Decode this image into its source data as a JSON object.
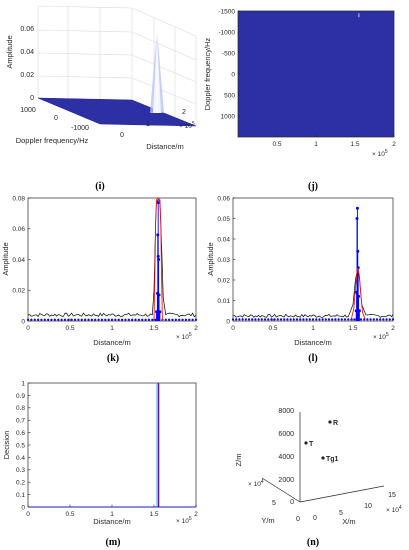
{
  "colors": {
    "navy": "#2d2fa5",
    "peak_white": "#f4f6ff",
    "blue": "#0000ff",
    "red": "#e31a1c",
    "black": "#000000",
    "cyan": "#00c8ff",
    "axis": "#262626"
  },
  "chart_data": [
    {
      "id": "i",
      "panel_label": "(i)",
      "type": "surface3d",
      "title": "",
      "xlabel": "Distance/m",
      "ylabel": "Doppler frequency/Hz",
      "zlabel": "Amplitude",
      "x_exponent": "× 10",
      "x_exponent_power": "5",
      "xlim": [
        0,
        2
      ],
      "ylim": [
        -2000,
        2000
      ],
      "zlim": [
        0,
        0.06
      ],
      "x_ticks": [
        "0",
        "1",
        "2"
      ],
      "y_ticks": [
        "1000",
        "0",
        "-1000"
      ],
      "z_ticks": [
        "0",
        "0.02",
        "0.04",
        "0.06"
      ],
      "peak": {
        "distance": 1.55,
        "doppler": 0,
        "amplitude": 0.055
      },
      "grid": true
    },
    {
      "id": "j",
      "panel_label": "(j)",
      "type": "heatmap",
      "title": "",
      "xlabel": "",
      "ylabel": "Doppler frequency/Hz",
      "x_exponent": "× 10",
      "x_exponent_power": "5",
      "xlim": [
        0,
        2
      ],
      "ylim": [
        -1500,
        1500
      ],
      "x_ticks": [
        0.5,
        1,
        1.5,
        2
      ],
      "x_tick_labels": [
        "0.5",
        "1",
        "1.5",
        "2"
      ],
      "y_ticks": [
        -1500,
        -1000,
        -500,
        0,
        500,
        1000
      ],
      "y_tick_labels": [
        "-1500",
        "-1000",
        "-500",
        "0",
        "500",
        "1000"
      ],
      "hotspot": {
        "distance": 1.55,
        "doppler": -1400
      }
    },
    {
      "id": "k",
      "panel_label": "(k)",
      "type": "line",
      "title": "",
      "xlabel": "Distance/m",
      "ylabel": "Amplitude",
      "x_exponent": "× 10",
      "x_exponent_power": "5",
      "xlim": [
        0,
        2
      ],
      "ylim": [
        0,
        0.08
      ],
      "x_ticks": [
        0,
        0.5,
        1,
        1.5,
        2
      ],
      "x_tick_labels": [
        "0",
        "0.5",
        "1",
        "1.5",
        "2"
      ],
      "y_ticks": [
        0,
        0.02,
        0.04,
        0.06,
        0.08
      ],
      "y_tick_labels": [
        "0",
        "0.02",
        "0.04",
        "0.06",
        "0.08"
      ],
      "series": [
        {
          "color": "black",
          "noise_level": 0.004,
          "noise_amp": 0.0012,
          "points": [
            [
              1.48,
              0.004
            ],
            [
              1.5,
              0.02
            ],
            [
              1.52,
              0.065
            ],
            [
              1.53,
              0.077
            ],
            [
              1.55,
              0.079
            ],
            [
              1.57,
              0.078
            ],
            [
              1.59,
              0.05
            ],
            [
              1.61,
              0.015
            ],
            [
              1.64,
              0.004
            ]
          ]
        },
        {
          "color": "red",
          "points": [
            [
              1.5,
              0.0
            ],
            [
              1.51,
              0.03
            ],
            [
              1.52,
              0.066
            ],
            [
              1.53,
              0.079
            ],
            [
              1.55,
              0.08
            ],
            [
              1.57,
              0.079
            ],
            [
              1.58,
              0.066
            ],
            [
              1.59,
              0.03
            ],
            [
              1.6,
              0.0
            ]
          ]
        },
        {
          "color": "blue",
          "marker": "dot",
          "baseline": 0.0008,
          "stems": [
            [
              1.55,
              0.077
            ],
            [
              1.545,
              0.056
            ],
            [
              1.55,
              0.042
            ],
            [
              1.555,
              0.04
            ],
            [
              1.54,
              0.018
            ],
            [
              1.56,
              0.017
            ],
            [
              1.53,
              0.006
            ],
            [
              1.57,
              0.006
            ]
          ]
        }
      ]
    },
    {
      "id": "l",
      "panel_label": "(l)",
      "type": "line",
      "title": "",
      "xlabel": "Distance/m",
      "ylabel": "Amplitude",
      "x_exponent": "× 10",
      "x_exponent_power": "5",
      "xlim": [
        0,
        2
      ],
      "ylim": [
        0,
        0.06
      ],
      "x_ticks": [
        0,
        0.5,
        1,
        1.5,
        2
      ],
      "x_tick_labels": [
        "0",
        "0.5",
        "1",
        "1.5",
        "2"
      ],
      "y_ticks": [
        0,
        0.01,
        0.02,
        0.03,
        0.04,
        0.05,
        0.06
      ],
      "y_tick_labels": [
        "0",
        "0.01",
        "0.02",
        "0.03",
        "0.04",
        "0.05",
        "0.06"
      ],
      "series": [
        {
          "color": "black",
          "noise_level": 0.0025,
          "noise_amp": 0.0008,
          "points": [
            [
              1.45,
              0.003
            ],
            [
              1.5,
              0.008
            ],
            [
              1.53,
              0.02
            ],
            [
              1.56,
              0.026
            ],
            [
              1.58,
              0.021
            ],
            [
              1.61,
              0.008
            ],
            [
              1.66,
              0.003
            ]
          ]
        },
        {
          "color": "red",
          "points": [
            [
              1.48,
              0.001
            ],
            [
              1.51,
              0.006
            ],
            [
              1.53,
              0.016
            ],
            [
              1.55,
              0.024
            ],
            [
              1.56,
              0.026
            ],
            [
              1.58,
              0.022
            ],
            [
              1.6,
              0.012
            ],
            [
              1.62,
              0.004
            ],
            [
              1.65,
              0.001
            ]
          ]
        },
        {
          "color": "blue",
          "marker": "dot",
          "baseline": 0.0008,
          "stems": [
            [
              1.555,
              0.055
            ],
            [
              1.55,
              0.05
            ],
            [
              1.56,
              0.034
            ],
            [
              1.565,
              0.026
            ],
            [
              1.545,
              0.014
            ],
            [
              1.57,
              0.012
            ],
            [
              1.54,
              0.005
            ],
            [
              1.58,
              0.005
            ]
          ]
        }
      ]
    },
    {
      "id": "m",
      "panel_label": "(m)",
      "type": "line",
      "title": "",
      "xlabel": "Distance/m",
      "ylabel": "Decision",
      "x_exponent": "× 10",
      "x_exponent_power": "5",
      "xlim": [
        0,
        2
      ],
      "ylim": [
        0,
        1
      ],
      "x_ticks": [
        0,
        0.5,
        1,
        1.5,
        2
      ],
      "x_tick_labels": [
        "0",
        "0.5",
        "1",
        "1.5",
        "2"
      ],
      "y_ticks": [
        0,
        0.1,
        0.2,
        0.3,
        0.4,
        0.5,
        0.6,
        0.7,
        0.8,
        0.9,
        1
      ],
      "y_tick_labels": [
        "0",
        "0.1",
        "0.2",
        "0.3",
        "0.4",
        "0.5",
        "0.6",
        "0.7",
        "0.8",
        "0.9",
        "1"
      ],
      "decision_x": 1.55
    },
    {
      "id": "n",
      "panel_label": "(n)",
      "type": "scatter3d",
      "title": "",
      "xlabel": "X/m",
      "ylabel": "Y/m",
      "zlabel": "Z/m",
      "x_exponent": "× 10",
      "x_exponent_power": "4",
      "y_exponent": "× 10",
      "y_exponent_power": "4",
      "z_ticks": [
        "0",
        "2000",
        "4000",
        "6000",
        "8000"
      ],
      "x_ticks": [
        "0",
        "5",
        "10",
        "15"
      ],
      "y_ticks": [
        "0",
        "5"
      ],
      "points": [
        {
          "label": "R"
        },
        {
          "label": "T"
        },
        {
          "label": "Tg1"
        }
      ]
    }
  ]
}
